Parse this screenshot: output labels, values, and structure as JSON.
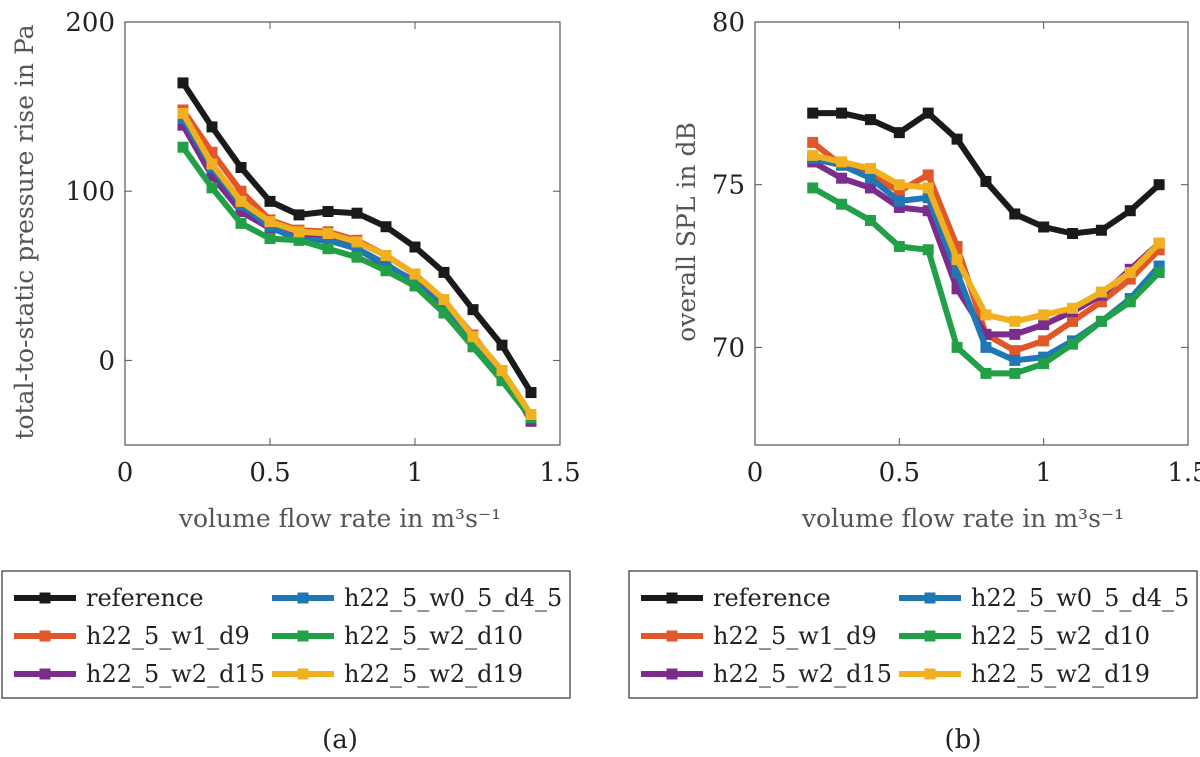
{
  "chart_data": [
    {
      "type": "line",
      "caption": "(a)",
      "xlabel": "volume flow rate in m³s⁻¹",
      "ylabel": "total-to-static pressure rise in Pa",
      "xlim": [
        0,
        1.5
      ],
      "ylim": [
        -50,
        200
      ],
      "xticks": [
        0,
        0.5,
        1,
        1.5
      ],
      "xtick_labels": [
        "0",
        "0.5",
        "1",
        "1.5"
      ],
      "yticks": [
        0,
        100,
        200
      ],
      "ytick_labels": [
        "0",
        "100",
        "200"
      ],
      "x": [
        0.2,
        0.3,
        0.4,
        0.5,
        0.6,
        0.7,
        0.8,
        0.9,
        1.0,
        1.1,
        1.2,
        1.3,
        1.4
      ],
      "series": [
        {
          "name": "reference",
          "color": "#1a1a1a",
          "values": [
            164,
            138,
            114,
            94,
            86,
            88,
            87,
            79,
            67,
            52,
            30,
            9,
            -19
          ]
        },
        {
          "name": "h22_5_w1_d9",
          "color": "#e0572a",
          "values": [
            148,
            123,
            100,
            83,
            77,
            76,
            71,
            62,
            51,
            35,
            15,
            -8,
            -34
          ]
        },
        {
          "name": "h22_5_w2_d15",
          "color": "#7b2d8e",
          "values": [
            139,
            109,
            88,
            78,
            73,
            72,
            66,
            56,
            47,
            33,
            11,
            -6,
            -36
          ]
        },
        {
          "name": "h22_5_w0_5_d4_5",
          "color": "#1f77b4",
          "values": [
            143,
            114,
            92,
            79,
            71,
            71,
            66,
            57,
            46,
            31,
            10,
            -9,
            -34
          ]
        },
        {
          "name": "h22_5_w2_d10",
          "color": "#22a047",
          "values": [
            126,
            102,
            81,
            72,
            71,
            66,
            61,
            53,
            44,
            28,
            8,
            -12,
            -34
          ]
        },
        {
          "name": "h22_5_w2_d19",
          "color": "#f0b020",
          "values": [
            146,
            116,
            94,
            82,
            76,
            75,
            70,
            62,
            51,
            36,
            14,
            -6,
            -32
          ]
        }
      ],
      "legend": {
        "placement": "below",
        "columns": 2,
        "order": [
          "reference",
          "h22_5_w0_5_d4_5",
          "h22_5_w1_d9",
          "h22_5_w2_d10",
          "h22_5_w2_d15",
          "h22_5_w2_d19"
        ]
      }
    },
    {
      "type": "line",
      "caption": "(b)",
      "xlabel": "volume flow rate in m³s⁻¹",
      "ylabel": "overall SPL in dB",
      "xlim": [
        0,
        1.5
      ],
      "ylim": [
        67,
        80
      ],
      "xticks": [
        0,
        0.5,
        1,
        1.5
      ],
      "xtick_labels": [
        "0",
        "0.5",
        "1",
        "1.5"
      ],
      "yticks": [
        70,
        75,
        80
      ],
      "ytick_labels": [
        "70",
        "75",
        "80"
      ],
      "x": [
        0.2,
        0.3,
        0.4,
        0.5,
        0.6,
        0.7,
        0.8,
        0.9,
        1.0,
        1.1,
        1.2,
        1.3,
        1.4
      ],
      "series": [
        {
          "name": "reference",
          "color": "#1a1a1a",
          "values": [
            77.2,
            77.2,
            77.0,
            76.6,
            77.2,
            76.4,
            75.1,
            74.1,
            73.7,
            73.5,
            73.6,
            74.2,
            75.0
          ]
        },
        {
          "name": "h22_5_w1_d9",
          "color": "#e0572a",
          "values": [
            76.3,
            75.6,
            75.3,
            74.8,
            75.3,
            73.1,
            70.4,
            69.9,
            70.2,
            70.8,
            71.4,
            72.1,
            73.0
          ]
        },
        {
          "name": "h22_5_w2_d15",
          "color": "#7b2d8e",
          "values": [
            75.7,
            75.2,
            74.9,
            74.3,
            74.2,
            71.8,
            70.4,
            70.4,
            70.7,
            71.1,
            71.6,
            72.4,
            73.2
          ]
        },
        {
          "name": "h22_5_w0_5_d4_5",
          "color": "#1f77b4",
          "values": [
            75.8,
            75.6,
            75.2,
            74.5,
            74.6,
            72.3,
            70.0,
            69.6,
            69.7,
            70.2,
            70.8,
            71.5,
            72.5
          ]
        },
        {
          "name": "h22_5_w2_d10",
          "color": "#22a047",
          "values": [
            74.9,
            74.4,
            73.9,
            73.1,
            73.0,
            70.0,
            69.2,
            69.2,
            69.5,
            70.1,
            70.8,
            71.4,
            72.3
          ]
        },
        {
          "name": "h22_5_w2_d19",
          "color": "#f0b020",
          "values": [
            75.9,
            75.7,
            75.5,
            75.0,
            74.9,
            72.7,
            71.0,
            70.8,
            71.0,
            71.2,
            71.7,
            72.3,
            73.2
          ]
        }
      ],
      "legend": {
        "placement": "below",
        "columns": 2,
        "order": [
          "reference",
          "h22_5_w0_5_d4_5",
          "h22_5_w1_d9",
          "h22_5_w2_d10",
          "h22_5_w2_d15",
          "h22_5_w2_d19"
        ]
      }
    }
  ]
}
